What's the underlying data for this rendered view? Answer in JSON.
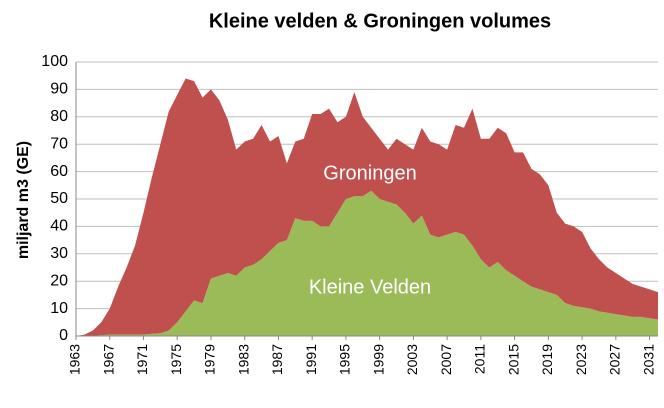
{
  "chart_data": {
    "type": "stacked_area",
    "title": "Kleine velden & Groningen volumes",
    "ylabel": "miljard m3 (GE)",
    "x": [
      1963,
      1964,
      1965,
      1966,
      1967,
      1968,
      1969,
      1970,
      1971,
      1972,
      1973,
      1974,
      1975,
      1976,
      1977,
      1978,
      1979,
      1980,
      1981,
      1982,
      1983,
      1984,
      1985,
      1986,
      1987,
      1988,
      1989,
      1990,
      1991,
      1992,
      1993,
      1994,
      1995,
      1996,
      1997,
      1998,
      1999,
      2000,
      2001,
      2002,
      2003,
      2004,
      2005,
      2006,
      2007,
      2008,
      2009,
      2010,
      2011,
      2012,
      2013,
      2014,
      2015,
      2016,
      2017,
      2018,
      2019,
      2020,
      2021,
      2022,
      2023,
      2024,
      2025,
      2026,
      2027,
      2028,
      2029,
      2030,
      2031,
      2032
    ],
    "series": [
      {
        "name": "Kleine Velden",
        "color": "#9bbb59",
        "values": [
          0,
          0,
          0,
          0.3,
          0.5,
          0.5,
          0.5,
          0.5,
          0.5,
          0.8,
          1,
          2,
          5,
          9,
          13,
          12,
          21,
          22,
          23,
          22,
          25,
          26,
          28,
          31,
          34,
          35,
          43,
          42,
          42,
          40,
          40,
          45,
          50,
          51,
          51,
          53,
          50,
          49,
          48,
          45,
          41,
          44,
          37,
          36,
          37,
          38,
          37,
          33,
          28,
          25,
          27,
          24,
          22,
          20,
          18,
          17,
          16,
          15,
          12,
          11,
          10.5,
          10,
          9,
          8.5,
          8,
          7.5,
          7,
          7,
          6.5,
          6
        ]
      },
      {
        "name": "Groningen",
        "color": "#c0504d",
        "values": [
          0,
          0.5,
          2,
          4.7,
          9.5,
          17.5,
          24.5,
          32.5,
          44.5,
          57.2,
          69,
          80,
          83,
          85,
          80,
          75,
          69,
          64,
          56,
          46,
          46,
          46,
          49,
          40,
          39,
          28,
          28,
          30,
          39,
          41,
          43,
          33,
          30,
          38,
          29,
          23,
          22,
          19,
          24,
          25,
          27,
          32,
          34,
          34,
          31,
          39,
          39,
          50,
          44,
          47,
          49,
          50,
          45,
          47,
          43,
          42,
          39,
          30,
          29,
          29,
          27.5,
          22,
          19,
          16.5,
          15,
          13.5,
          12,
          11,
          10.5,
          10
        ]
      }
    ],
    "xlim": [
      1963,
      2032
    ],
    "xticks": [
      1963,
      1967,
      1971,
      1975,
      1979,
      1983,
      1987,
      1991,
      1995,
      1999,
      2003,
      2007,
      2011,
      2015,
      2019,
      2023,
      2027,
      2031
    ],
    "ylim": [
      0,
      100
    ],
    "yticks": [
      0,
      10,
      20,
      30,
      40,
      50,
      60,
      70,
      80,
      90,
      100
    ],
    "grid": true
  }
}
